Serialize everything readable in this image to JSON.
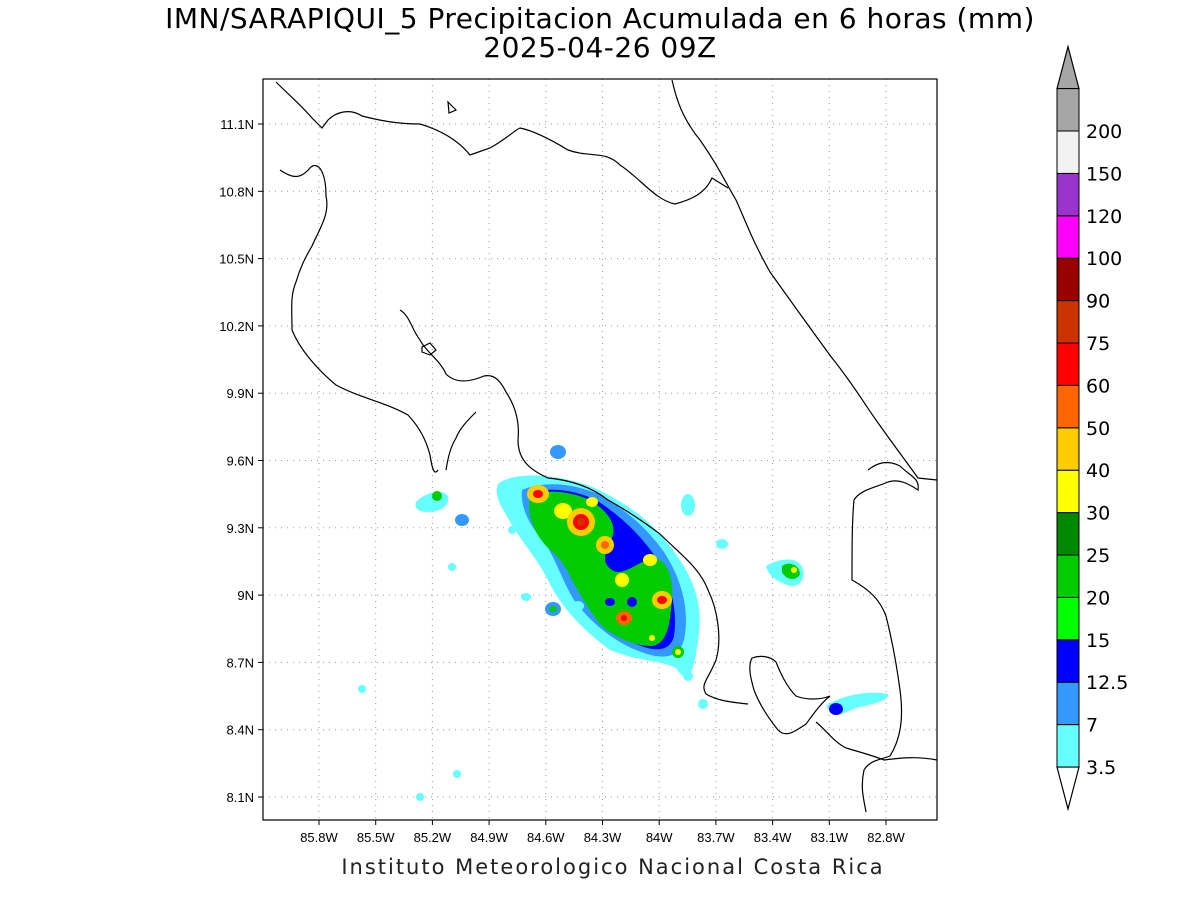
{
  "title": {
    "line1": "IMN/SARAPIQUI_5 Precipitacion Acumulada en 6 horas (mm)",
    "line2": "2025-04-26 09Z"
  },
  "footer": "Instituto Meteorologico Nacional Costa Rica",
  "map": {
    "lon_range": [
      -86.0,
      -83.0
    ],
    "lat_range": [
      8.0,
      11.3
    ],
    "lat_ticks": [
      {
        "value": 11.1,
        "label": "11.1N"
      },
      {
        "value": 10.8,
        "label": "10.8N"
      },
      {
        "value": 10.5,
        "label": "10.5N"
      },
      {
        "value": 10.2,
        "label": "10.2N"
      },
      {
        "value": 9.9,
        "label": "9.9N"
      },
      {
        "value": 9.6,
        "label": "9.6N"
      },
      {
        "value": 9.3,
        "label": "9.3N"
      },
      {
        "value": 9.0,
        "label": "9N"
      },
      {
        "value": 8.7,
        "label": "8.7N"
      },
      {
        "value": 8.4,
        "label": "8.4N"
      },
      {
        "value": 8.1,
        "label": "8.1N"
      }
    ],
    "lon_ticks": [
      {
        "value": -85.8,
        "label": "85.8W"
      },
      {
        "value": -85.5,
        "label": "85.5W"
      },
      {
        "value": -85.2,
        "label": "85.2W"
      },
      {
        "value": -84.9,
        "label": "84.9W"
      },
      {
        "value": -84.6,
        "label": "84.6W"
      },
      {
        "value": -84.3,
        "label": "84.3W"
      },
      {
        "value": -84.0,
        "label": "84W"
      },
      {
        "value": -83.7,
        "label": "83.7W"
      },
      {
        "value": -83.4,
        "label": "83.4W"
      },
      {
        "value": -83.1,
        "label": "83.1W"
      },
      {
        "value": -82.8,
        "label": "82.8W"
      }
    ],
    "grid": "dotted"
  },
  "colorbar": {
    "levels": [
      {
        "label": "3.5",
        "color": "#66ffff"
      },
      {
        "label": "7",
        "color": "#3399ff"
      },
      {
        "label": "12.5",
        "color": "#0000ff"
      },
      {
        "label": "15",
        "color": "#00ff00"
      },
      {
        "label": "20",
        "color": "#00cc00"
      },
      {
        "label": "25",
        "color": "#008800"
      },
      {
        "label": "30",
        "color": "#ffff00"
      },
      {
        "label": "40",
        "color": "#ffcc00"
      },
      {
        "label": "50",
        "color": "#ff6600"
      },
      {
        "label": "60",
        "color": "#ff0000"
      },
      {
        "label": "75",
        "color": "#cc3300"
      },
      {
        "label": "90",
        "color": "#990000"
      },
      {
        "label": "100",
        "color": "#ff00ff"
      },
      {
        "label": "120",
        "color": "#9933cc"
      },
      {
        "label": "150",
        "color": "#f2f2f2"
      },
      {
        "label": "200",
        "color": "#a6a6a6"
      }
    ],
    "low_end_color": "#ffffff",
    "high_end_color": "#a6a6a6"
  }
}
